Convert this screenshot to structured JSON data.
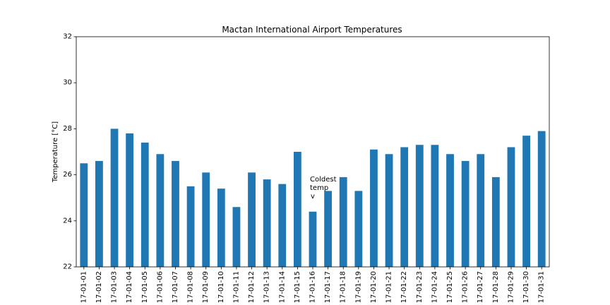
{
  "chart_data": {
    "type": "bar",
    "title": "Mactan International Airport Temperatures",
    "xlabel": "",
    "ylabel": "Temperature [°C]",
    "ylim": [
      22,
      32
    ],
    "yticks": [
      22,
      24,
      26,
      28,
      30,
      32
    ],
    "grid": false,
    "bar_color": "#1f77b4",
    "categories": [
      "17-01-01",
      "17-01-02",
      "17-01-03",
      "17-01-04",
      "17-01-05",
      "17-01-06",
      "17-01-07",
      "17-01-08",
      "17-01-09",
      "17-01-10",
      "17-01-11",
      "17-01-12",
      "17-01-13",
      "17-01-14",
      "17-01-15",
      "17-01-16",
      "17-01-17",
      "17-01-18",
      "17-01-19",
      "17-01-20",
      "17-01-21",
      "17-01-22",
      "17-01-23",
      "17-01-24",
      "17-01-25",
      "17-01-26",
      "17-01-27",
      "17-01-28",
      "17-01-29",
      "17-01-30",
      "17-01-31"
    ],
    "values": [
      26.5,
      26.6,
      28.0,
      27.8,
      27.4,
      26.9,
      26.6,
      25.5,
      26.1,
      25.4,
      24.6,
      26.1,
      25.8,
      25.6,
      27.0,
      24.4,
      25.3,
      25.9,
      25.3,
      27.1,
      26.9,
      27.2,
      27.3,
      27.3,
      26.9,
      26.6,
      26.9,
      25.9,
      27.2,
      27.7,
      27.9
    ],
    "annotation": {
      "lines": [
        "Coldest",
        "temp",
        "v"
      ],
      "category": "17-01-16"
    }
  }
}
